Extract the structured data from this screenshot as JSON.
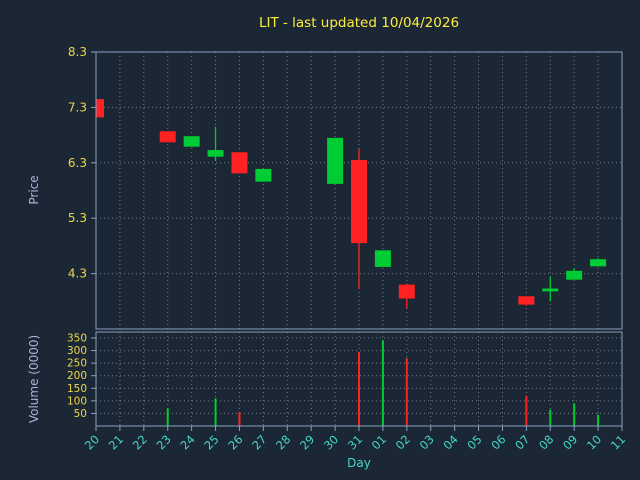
{
  "colors": {
    "background": "#1b2735",
    "title": "#fdee3c",
    "tick_yellow": "#ecd64b",
    "tick_cyan": "#45d8c8",
    "axis_label": "#a9b4d4",
    "spine": "#8aa2c0",
    "grid": "#b9c7d2",
    "up": "#00cc33",
    "down": "#ff2222"
  },
  "chart_data": [
    {
      "type": "candlestick",
      "title": "LIT - last updated 10/04/2026",
      "xlabel": "Day",
      "ylabel": "Price",
      "ylim": [
        3.3,
        8.3
      ],
      "y_ticks": [
        8.3,
        7.3,
        6.3,
        5.3,
        4.3
      ],
      "x_ticks": [
        "20",
        "21",
        "22",
        "23",
        "24",
        "25",
        "26",
        "27",
        "28",
        "29",
        "30",
        "31",
        "01",
        "02",
        "03",
        "04",
        "05",
        "06",
        "07",
        "08",
        "09",
        "10",
        "11"
      ],
      "grid": true,
      "legend": "none",
      "candles": [
        {
          "day": "20",
          "open": 7.45,
          "high": 7.45,
          "low": 7.12,
          "close": 7.12,
          "color": "red"
        },
        {
          "day": "23",
          "open": 6.87,
          "high": 6.87,
          "low": 6.67,
          "close": 6.67,
          "color": "red"
        },
        {
          "day": "24",
          "open": 6.59,
          "high": 6.78,
          "low": 6.59,
          "close": 6.78,
          "color": "green"
        },
        {
          "day": "25",
          "open": 6.41,
          "high": 6.95,
          "low": 6.33,
          "close": 6.53,
          "color": "green"
        },
        {
          "day": "26",
          "open": 6.49,
          "high": 6.49,
          "low": 6.11,
          "close": 6.11,
          "color": "red"
        },
        {
          "day": "27",
          "open": 5.96,
          "high": 6.19,
          "low": 5.96,
          "close": 6.19,
          "color": "green"
        },
        {
          "day": "30",
          "open": 5.92,
          "high": 6.75,
          "low": 5.92,
          "close": 6.75,
          "color": "green"
        },
        {
          "day": "31",
          "open": 6.35,
          "high": 6.55,
          "low": 4.02,
          "close": 4.85,
          "color": "red"
        },
        {
          "day": "01",
          "open": 4.42,
          "high": 4.72,
          "low": 4.42,
          "close": 4.72,
          "color": "green"
        },
        {
          "day": "02",
          "open": 4.1,
          "high": 4.12,
          "low": 3.68,
          "close": 3.85,
          "color": "red"
        },
        {
          "day": "07",
          "open": 3.89,
          "high": 3.89,
          "low": 3.72,
          "close": 3.74,
          "color": "red"
        },
        {
          "day": "08",
          "open": 3.98,
          "high": 4.24,
          "low": 3.8,
          "close": 4.03,
          "color": "green"
        },
        {
          "day": "09",
          "open": 4.19,
          "high": 4.4,
          "low": 4.19,
          "close": 4.35,
          "color": "green"
        },
        {
          "day": "10",
          "open": 4.43,
          "high": 4.58,
          "low": 4.43,
          "close": 4.56,
          "color": "green"
        }
      ]
    },
    {
      "type": "bar",
      "ylabel": "Volume (0000)",
      "ylim": [
        0,
        350
      ],
      "y_ticks": [
        350,
        300,
        250,
        200,
        150,
        100,
        50
      ],
      "bars": [
        {
          "day": "23",
          "value": 70,
          "color": "green"
        },
        {
          "day": "25",
          "value": 110,
          "color": "green"
        },
        {
          "day": "26",
          "value": 55,
          "color": "red"
        },
        {
          "day": "31",
          "value": 295,
          "color": "red"
        },
        {
          "day": "01",
          "value": 340,
          "color": "green"
        },
        {
          "day": "02",
          "value": 270,
          "color": "red"
        },
        {
          "day": "07",
          "value": 120,
          "color": "red"
        },
        {
          "day": "08",
          "value": 65,
          "color": "green"
        },
        {
          "day": "09",
          "value": 90,
          "color": "green"
        },
        {
          "day": "10",
          "value": 45,
          "color": "green"
        }
      ]
    }
  ]
}
